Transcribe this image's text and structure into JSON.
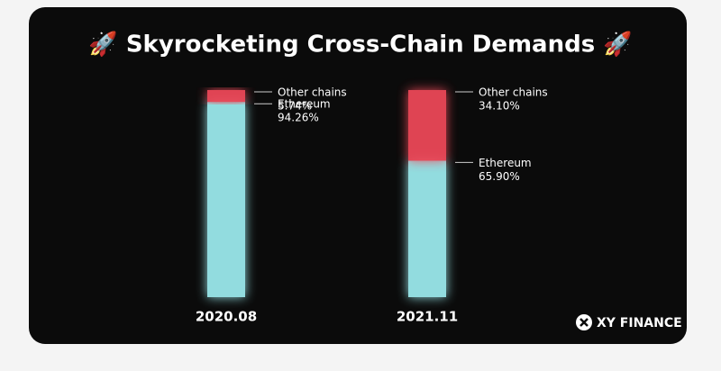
{
  "chart_data": {
    "type": "bar",
    "stacked": true,
    "title": "🚀 Skyrocketing Cross-Chain Demands 🚀",
    "categories": [
      "2020.08",
      "2021.11"
    ],
    "series": [
      {
        "name": "Ethereum",
        "color": "#9eeef2",
        "values": [
          94.26,
          65.9
        ],
        "value_labels": [
          "94.26%",
          "65.90%"
        ]
      },
      {
        "name": "Other chains",
        "color": "#f2495a",
        "values": [
          5.74,
          34.1
        ],
        "value_labels": [
          "5.74%",
          "34.10%"
        ]
      }
    ],
    "ylim": [
      0,
      100
    ],
    "brand": "XY FINANCE"
  }
}
